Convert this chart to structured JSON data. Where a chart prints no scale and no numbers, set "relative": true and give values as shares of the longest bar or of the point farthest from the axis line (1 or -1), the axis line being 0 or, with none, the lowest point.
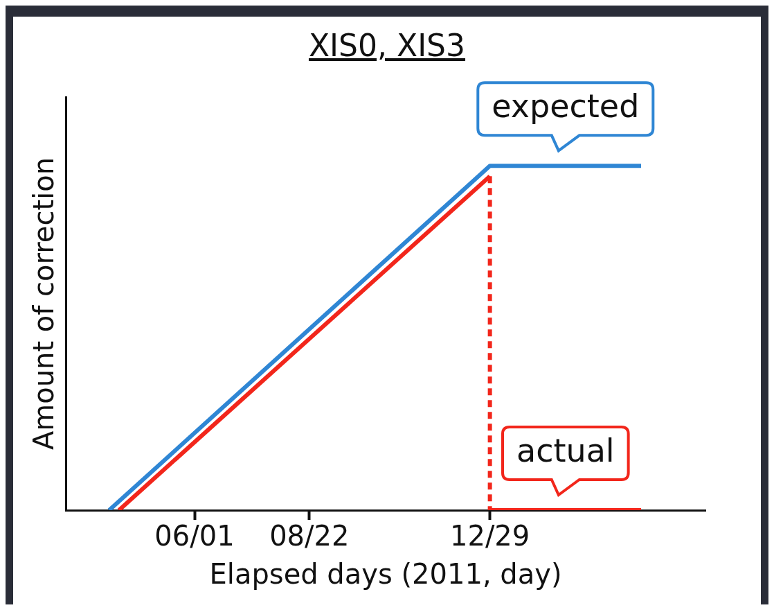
{
  "chart_data": {
    "type": "line",
    "title": "XIS0, XIS3",
    "xlabel": "Elapsed days (2011, day)",
    "ylabel": "Amount of correction",
    "relative": true,
    "xlim": [
      "2011-03-01",
      "2012-05-31"
    ],
    "xticks": [
      {
        "value": "2011-06-01",
        "label": "06/01"
      },
      {
        "value": "2011-08-22",
        "label": "08/22"
      },
      {
        "value": "2011-12-29",
        "label": "12/29"
      }
    ],
    "series": [
      {
        "name": "expected",
        "color": "#2f86d4",
        "x": [
          "2011-04-01",
          "2011-12-29",
          "2012-04-15"
        ],
        "values": [
          0,
          1,
          1
        ]
      },
      {
        "color": "#f2261b",
        "x": [
          "2011-04-08",
          "2011-12-29"
        ],
        "values": [
          0,
          0.97
        ]
      },
      {
        "color": "#f2261b",
        "line_style": "dashed",
        "x": [
          "2011-12-29",
          "2011-12-29"
        ],
        "values": [
          0.97,
          0
        ]
      },
      {
        "name": "actual",
        "color": "#f2261b",
        "x": [
          "2011-12-29",
          "2012-04-15"
        ],
        "values": [
          0,
          0
        ]
      }
    ],
    "legend": false,
    "grid": false,
    "marker": "none",
    "line_style": "solid"
  }
}
